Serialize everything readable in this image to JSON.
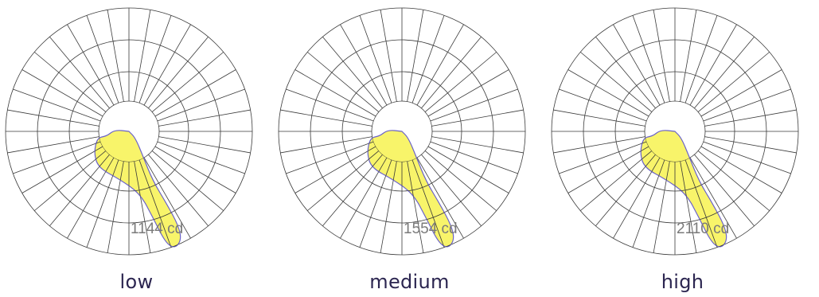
{
  "diagrams": [
    {
      "caption": "low",
      "value_label": "1144 cd"
    },
    {
      "caption": "medium",
      "value_label": "1554 cd"
    },
    {
      "caption": "high",
      "value_label": "2110 cd"
    }
  ],
  "colors": {
    "beam_fill": "#f7f35a",
    "beam_outline": "#6a62c9",
    "grid": "#3a3a3a",
    "caption": "#2b2550",
    "value_label": "#7a7a7a"
  }
}
